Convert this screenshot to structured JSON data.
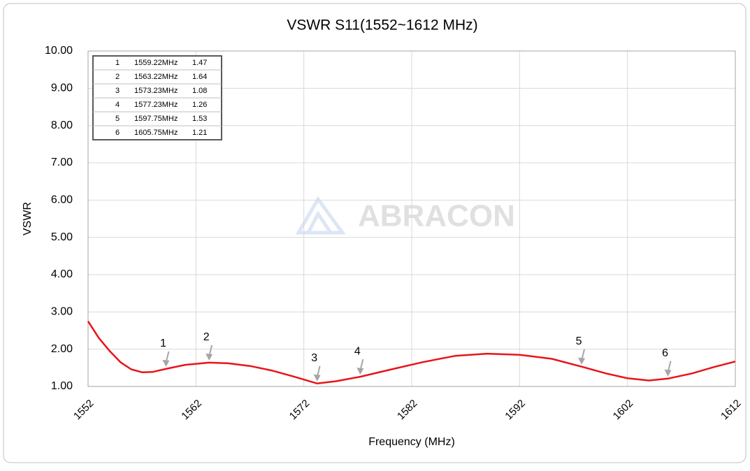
{
  "chart_data": {
    "type": "line",
    "title": "VSWR S11(1552~1612 MHz)",
    "x_label": "Frequency (MHz)",
    "y_label": "VSWR",
    "watermark": "ABRACON",
    "xlim": [
      1552,
      1612
    ],
    "xticks": [
      1552,
      1562,
      1572,
      1582,
      1592,
      1602,
      1612
    ],
    "ylim": [
      1,
      10
    ],
    "yticks": [
      {
        "value": 1,
        "label": "1.00"
      },
      {
        "value": 2,
        "label": "2.00"
      },
      {
        "value": 3,
        "label": "3.00"
      },
      {
        "value": 4,
        "label": "4.00"
      },
      {
        "value": 5,
        "label": "5.00"
      },
      {
        "value": 6,
        "label": "6.00"
      },
      {
        "value": 7,
        "label": "7.00"
      },
      {
        "value": 8,
        "label": "8.00"
      },
      {
        "value": 9,
        "label": "9.00"
      },
      {
        "value": 10,
        "label": "10.00"
      }
    ],
    "grid": true,
    "series": [
      {
        "color": "#e8141b",
        "x": [
          1552,
          1553,
          1554,
          1555,
          1556,
          1557,
          1558,
          1559.22,
          1561,
          1563.22,
          1565,
          1567,
          1569,
          1571,
          1573.23,
          1575,
          1577.23,
          1580,
          1583,
          1586,
          1589,
          1592,
          1595,
          1597.75,
          1600,
          1602,
          1604,
          1605.75,
          1608,
          1610,
          1612
        ],
        "values": [
          2.75,
          2.3,
          1.95,
          1.65,
          1.46,
          1.38,
          1.39,
          1.47,
          1.58,
          1.64,
          1.62,
          1.55,
          1.43,
          1.27,
          1.08,
          1.14,
          1.26,
          1.45,
          1.65,
          1.82,
          1.88,
          1.85,
          1.74,
          1.53,
          1.35,
          1.22,
          1.16,
          1.21,
          1.35,
          1.52,
          1.67
        ]
      }
    ],
    "markers": {
      "names": [
        "1",
        "2",
        "3",
        "4",
        "5",
        "6"
      ],
      "x": [
        1559.22,
        1563.22,
        1573.23,
        1577.23,
        1597.75,
        1605.75
      ],
      "x_labels": [
        "1559.22MHz",
        "1563.22MHz",
        "1573.23MHz",
        "1577.23MHz",
        "1597.75MHz",
        "1605.75MHz"
      ],
      "values": [
        1.47,
        1.64,
        1.08,
        1.26,
        1.53,
        1.21
      ]
    }
  }
}
